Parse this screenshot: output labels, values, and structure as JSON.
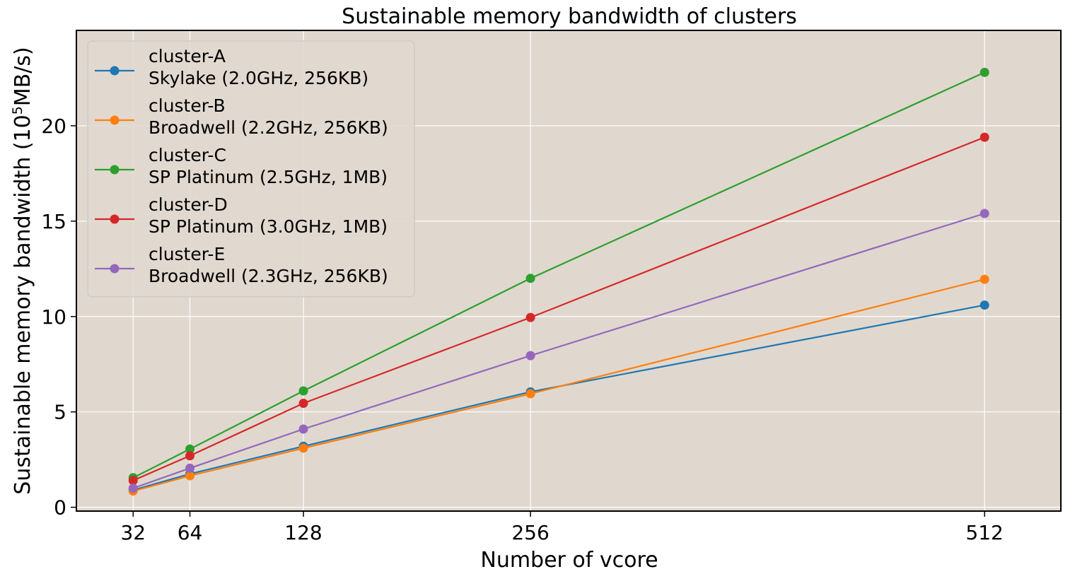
{
  "chart_data": {
    "type": "line",
    "title": "Sustainable memory bandwidth of clusters",
    "xlabel": "Number of vcore",
    "ylabel_main": "Sustainable memory bandwidth (10",
    "ylabel_exp": "5",
    "ylabel_unit": "MB/s)",
    "x": [
      32,
      64,
      128,
      256,
      512
    ],
    "xlim": [
      0,
      555
    ],
    "ylim": [
      -0.2,
      25.0
    ],
    "xticks": [
      32,
      64,
      128,
      256,
      512
    ],
    "yticks": [
      0,
      5,
      10,
      15,
      20
    ],
    "grid": true,
    "legend_position": "top-left",
    "background": "#e0d8cf",
    "series": [
      {
        "name": "cluster-A",
        "desc": "Skylake (2.0GHz, 256KB)",
        "color": "#1f77b4",
        "values": [
          0.9,
          1.75,
          3.2,
          6.05,
          10.6
        ]
      },
      {
        "name": "cluster-B",
        "desc": "Broadwell (2.2GHz, 256KB)",
        "color": "#ff7f0e",
        "values": [
          0.85,
          1.65,
          3.1,
          5.95,
          11.95
        ]
      },
      {
        "name": "cluster-C",
        "desc": "SP Platinum (2.5GHz, 1MB)",
        "color": "#2ca02c",
        "values": [
          1.55,
          3.05,
          6.1,
          12.0,
          22.8
        ]
      },
      {
        "name": "cluster-D",
        "desc": "SP Platinum (3.0GHz, 1MB)",
        "color": "#d62728",
        "values": [
          1.4,
          2.7,
          5.45,
          9.95,
          19.4
        ]
      },
      {
        "name": "cluster-E",
        "desc": "Broadwell (2.3GHz, 256KB)",
        "color": "#9467bd",
        "values": [
          1.0,
          2.05,
          4.1,
          7.95,
          15.4
        ]
      }
    ]
  }
}
